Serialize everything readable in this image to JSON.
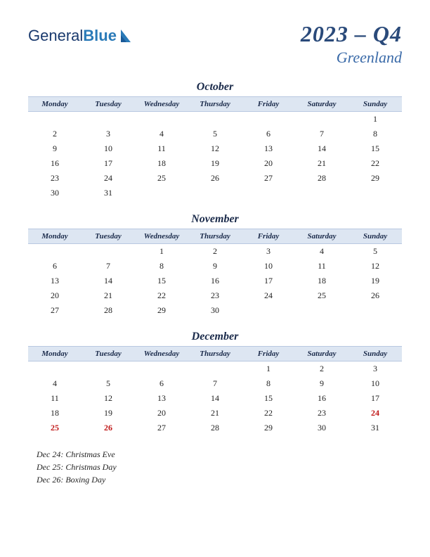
{
  "logo": {
    "text1": "General",
    "text2": "Blue"
  },
  "title": {
    "year_quarter": "2023 – Q4",
    "country": "Greenland"
  },
  "day_headers": [
    "Monday",
    "Tuesday",
    "Wednesday",
    "Thursday",
    "Friday",
    "Saturday",
    "Sunday"
  ],
  "style": {
    "header_bg": "#dde6f2",
    "header_border": "#b8c8e0",
    "title_color": "#2a4a7a",
    "country_color": "#3a6aa8",
    "holiday_color": "#c01818",
    "text_color": "#222222",
    "month_name_fontsize": 16,
    "year_fontsize": 32,
    "country_fontsize": 22,
    "day_header_fontsize": 11,
    "cell_fontsize": 12
  },
  "months": [
    {
      "name": "October",
      "weeks": [
        [
          "",
          "",
          "",
          "",
          "",
          "",
          "1"
        ],
        [
          "2",
          "3",
          "4",
          "5",
          "6",
          "7",
          "8"
        ],
        [
          "9",
          "10",
          "11",
          "12",
          "13",
          "14",
          "15"
        ],
        [
          "16",
          "17",
          "18",
          "19",
          "20",
          "21",
          "22"
        ],
        [
          "23",
          "24",
          "25",
          "26",
          "27",
          "28",
          "29"
        ],
        [
          "30",
          "31",
          "",
          "",
          "",
          "",
          ""
        ]
      ],
      "holiday_cells": []
    },
    {
      "name": "November",
      "weeks": [
        [
          "",
          "",
          "1",
          "2",
          "3",
          "4",
          "5"
        ],
        [
          "6",
          "7",
          "8",
          "9",
          "10",
          "11",
          "12"
        ],
        [
          "13",
          "14",
          "15",
          "16",
          "17",
          "18",
          "19"
        ],
        [
          "20",
          "21",
          "22",
          "23",
          "24",
          "25",
          "26"
        ],
        [
          "27",
          "28",
          "29",
          "30",
          "",
          "",
          ""
        ]
      ],
      "holiday_cells": []
    },
    {
      "name": "December",
      "weeks": [
        [
          "",
          "",
          "",
          "",
          "1",
          "2",
          "3"
        ],
        [
          "4",
          "5",
          "6",
          "7",
          "8",
          "9",
          "10"
        ],
        [
          "11",
          "12",
          "13",
          "14",
          "15",
          "16",
          "17"
        ],
        [
          "18",
          "19",
          "20",
          "21",
          "22",
          "23",
          "24"
        ],
        [
          "25",
          "26",
          "27",
          "28",
          "29",
          "30",
          "31"
        ]
      ],
      "holiday_cells": [
        "24",
        "25",
        "26"
      ]
    }
  ],
  "holiday_list": [
    "Dec 24: Christmas Eve",
    "Dec 25: Christmas Day",
    "Dec 26: Boxing Day"
  ]
}
